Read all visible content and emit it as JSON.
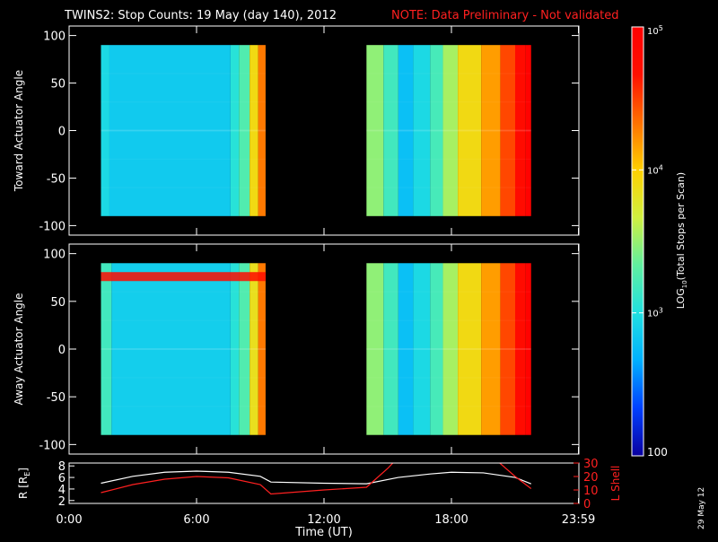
{
  "header": {
    "title": "TWINS2: Stop Counts: 19 May (day 140), 2012",
    "note": "NOTE: Data Preliminary - Not validated",
    "title_color": "#ffffff",
    "note_color": "#ff2020"
  },
  "side_stamp": "29 May 12",
  "colorbar": {
    "label": "LOG10(Total Stops per Scan)",
    "label_prefix": "LOG",
    "label_sub": "10",
    "label_suffix": "(Total Stops per Scan)",
    "ticks": [
      {
        "base": "10",
        "exp": "5",
        "value": 100000
      },
      {
        "base": "10",
        "exp": "4",
        "value": 10000
      },
      {
        "base": "10",
        "exp": "3",
        "value": 1000
      },
      {
        "base": "100",
        "exp": "",
        "value": 100
      }
    ],
    "scale": "log",
    "range": [
      100,
      100000
    ],
    "colors": [
      "#0a00a0",
      "#0040ff",
      "#00b0ff",
      "#20e0e0",
      "#60f0a0",
      "#d0f040",
      "#ffd000",
      "#ff7000",
      "#ff1000",
      "#ff0000"
    ]
  },
  "chart_data": [
    {
      "type": "heatmap",
      "ylabel": "Toward Actuator Angle",
      "ylim": [
        -110,
        110
      ],
      "yticks": [
        "100",
        "50",
        "0",
        "-50",
        "-100"
      ],
      "ytick_values": [
        100,
        50,
        0,
        -50,
        -100
      ],
      "x_range_hours": [
        0,
        24
      ],
      "data_blocks": [
        {
          "start": "1:30",
          "end": "9:15",
          "angle_range": [
            -90,
            90
          ],
          "columns": [
            {
              "from": 1.5,
              "to": 1.9,
              "value": 900
            },
            {
              "from": 1.9,
              "to": 7.6,
              "value": 700
            },
            {
              "from": 7.6,
              "to": 8.0,
              "value": 1100
            },
            {
              "from": 8.0,
              "to": 8.5,
              "value": 1800
            },
            {
              "from": 8.5,
              "to": 8.9,
              "value": 8000
            },
            {
              "from": 8.9,
              "to": 9.25,
              "value": 20000
            }
          ]
        },
        {
          "start": "14:00",
          "end": "21:45",
          "angle_range": [
            -90,
            90
          ],
          "columns": [
            {
              "from": 14.0,
              "to": 14.8,
              "value": 3000
            },
            {
              "from": 14.8,
              "to": 15.5,
              "value": 1500
            },
            {
              "from": 15.5,
              "to": 16.2,
              "value": 600
            },
            {
              "from": 16.2,
              "to": 17.0,
              "value": 900
            },
            {
              "from": 17.0,
              "to": 17.6,
              "value": 1600
            },
            {
              "from": 17.6,
              "to": 18.3,
              "value": 3500
            },
            {
              "from": 18.3,
              "to": 19.4,
              "value": 8000
            },
            {
              "from": 19.4,
              "to": 20.3,
              "value": 15000
            },
            {
              "from": 20.3,
              "to": 21.0,
              "value": 30000
            },
            {
              "from": 21.0,
              "to": 21.5,
              "value": 60000
            },
            {
              "from": 21.5,
              "to": 21.75,
              "value": 90000
            }
          ]
        }
      ]
    },
    {
      "type": "heatmap",
      "ylabel": "Away Actuator Angle",
      "ylim": [
        -110,
        110
      ],
      "yticks": [
        "100",
        "50",
        "0",
        "-50",
        "-100"
      ],
      "ytick_values": [
        100,
        50,
        0,
        -50,
        -100
      ],
      "x_range_hours": [
        0,
        24
      ],
      "data_blocks": [
        {
          "start": "1:30",
          "end": "9:15",
          "angle_range": [
            -90,
            90
          ],
          "columns": [
            {
              "from": 1.5,
              "to": 2.0,
              "value": 1500
            },
            {
              "from": 2.0,
              "to": 7.6,
              "value": 750
            },
            {
              "from": 7.6,
              "to": 8.0,
              "value": 1100
            },
            {
              "from": 8.0,
              "to": 8.5,
              "value": 1800
            },
            {
              "from": 8.5,
              "to": 8.9,
              "value": 7000
            },
            {
              "from": 8.9,
              "to": 9.25,
              "value": 20000
            }
          ],
          "high_band": {
            "angle": 75,
            "value": 60000
          }
        },
        {
          "start": "14:00",
          "end": "21:45",
          "angle_range": [
            -90,
            90
          ],
          "columns": [
            {
              "from": 14.0,
              "to": 14.8,
              "value": 3000
            },
            {
              "from": 14.8,
              "to": 15.5,
              "value": 1500
            },
            {
              "from": 15.5,
              "to": 16.2,
              "value": 600
            },
            {
              "from": 16.2,
              "to": 17.0,
              "value": 900
            },
            {
              "from": 17.0,
              "to": 17.6,
              "value": 1600
            },
            {
              "from": 17.6,
              "to": 18.3,
              "value": 3500
            },
            {
              "from": 18.3,
              "to": 19.4,
              "value": 8000
            },
            {
              "from": 19.4,
              "to": 20.3,
              "value": 15000
            },
            {
              "from": 20.3,
              "to": 21.0,
              "value": 30000
            },
            {
              "from": 21.0,
              "to": 21.5,
              "value": 60000
            },
            {
              "from": 21.5,
              "to": 21.75,
              "value": 90000
            }
          ]
        }
      ]
    },
    {
      "type": "line",
      "xlabel": "Time (UT)",
      "xticks": [
        "0:00",
        "6:00",
        "12:00",
        "18:00",
        "23:59"
      ],
      "xtick_values": [
        0,
        6,
        12,
        18,
        23.98
      ],
      "ylabel_left": "R [R",
      "ylabel_left_sub": "E",
      "ylabel_left_close": "]",
      "ylabel_right": "L Shell",
      "ylim_left": [
        1.5,
        8.5
      ],
      "ylim_right": [
        0,
        30
      ],
      "yticks_left": [
        "8",
        "6",
        "4",
        "2"
      ],
      "ytick_values_left": [
        8,
        6,
        4,
        2
      ],
      "yticks_right": [
        "30",
        "20",
        "10",
        "0"
      ],
      "ytick_values_right": [
        30,
        20,
        10,
        0
      ],
      "series": [
        {
          "axis": "left",
          "color": "#ffffff",
          "x": [
            1.5,
            3,
            4.5,
            6,
            7.5,
            9,
            9.5,
            12,
            14,
            15.5,
            17,
            18,
            19.5,
            21,
            21.75
          ],
          "y": [
            5.0,
            6.2,
            6.9,
            7.1,
            6.9,
            6.2,
            5.2,
            5.0,
            4.9,
            6.0,
            6.6,
            6.9,
            6.8,
            6.0,
            4.9
          ]
        },
        {
          "axis": "right",
          "color": "#ff2020",
          "x": [
            1.5,
            3,
            4.5,
            6,
            7.5,
            9,
            9.5,
            12,
            14,
            15.0,
            15.3,
            20.2,
            21.0,
            21.75
          ],
          "y": [
            8,
            14,
            18,
            20,
            19,
            14,
            7,
            10,
            12,
            26,
            31,
            31,
            20,
            11
          ]
        }
      ]
    }
  ]
}
